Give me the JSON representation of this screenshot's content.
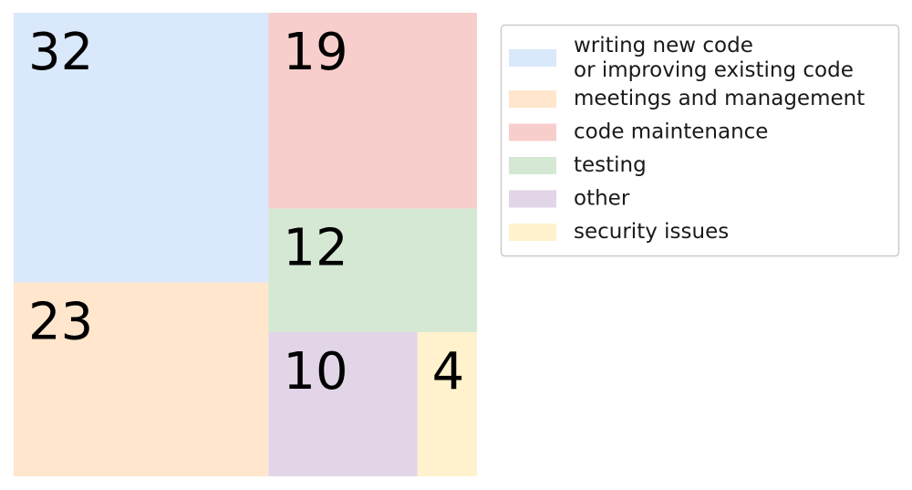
{
  "chart_data": {
    "type": "treemap",
    "title": "",
    "items": [
      {
        "label": "writing new code\nor improving existing code",
        "value": 32,
        "color": "#dae8fc"
      },
      {
        "label": "meetings and management",
        "value": 23,
        "color": "#ffe6cc"
      },
      {
        "label": "code maintenance",
        "value": 19,
        "color": "#f8cecc"
      },
      {
        "label": "testing",
        "value": 12,
        "color": "#d5e8d4"
      },
      {
        "label": "other",
        "value": 10,
        "color": "#e1d5e7"
      },
      {
        "label": "security issues",
        "value": 4,
        "color": "#fff2cc"
      }
    ],
    "legend_position": "right"
  }
}
